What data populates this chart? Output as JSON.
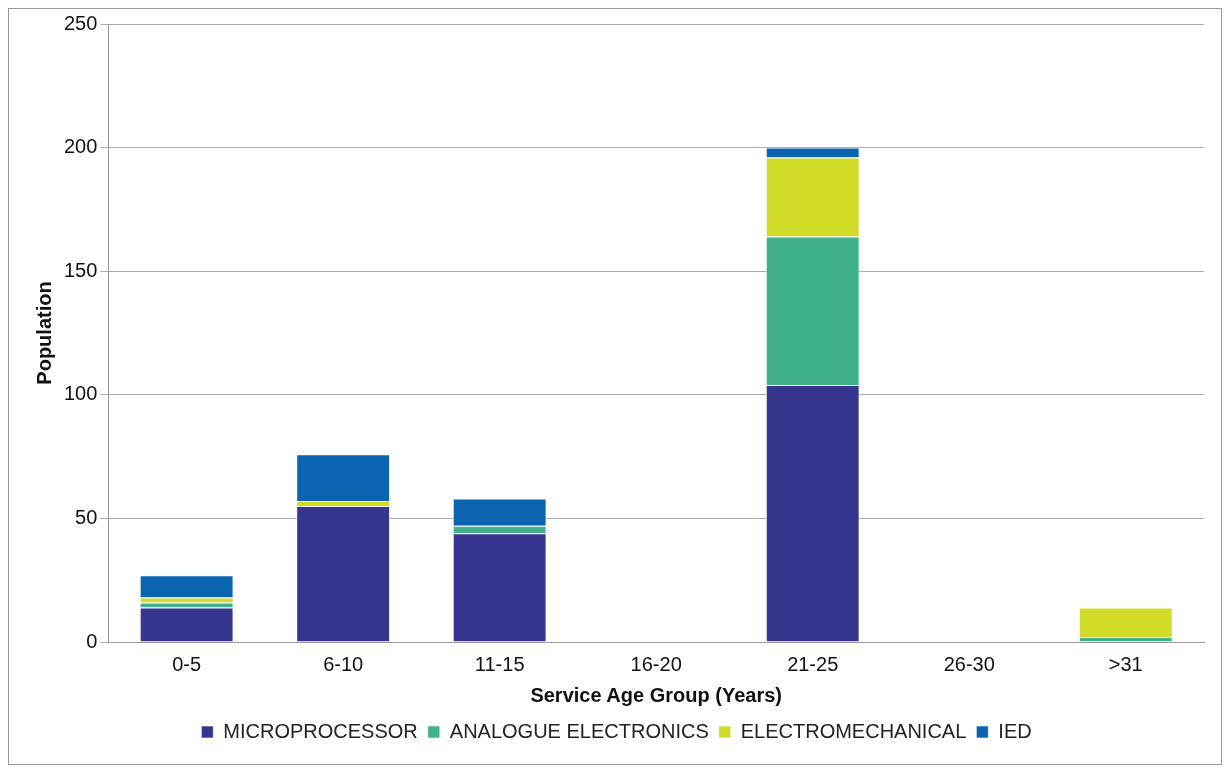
{
  "chart_data": {
    "type": "bar",
    "stacked": true,
    "xlabel": "Service Age Group (Years)",
    "ylabel": "Population",
    "categories": [
      "0-5",
      "6-10",
      "11-15",
      "16-20",
      "21-25",
      "26-30",
      ">31"
    ],
    "series": [
      {
        "name": "MICROPROCESSOR",
        "color": "#37368f",
        "values": [
          14,
          55,
          44,
          0,
          104,
          0,
          0
        ]
      },
      {
        "name": "ANALOGUE ELECTRONICS",
        "color": "#40b08d",
        "values": [
          2,
          0,
          3,
          0,
          60,
          0,
          2
        ]
      },
      {
        "name": "ELECTROMECHANICAL",
        "color": "#cfdb27",
        "values": [
          2,
          2,
          0,
          0,
          32,
          0,
          12
        ]
      },
      {
        "name": "IED",
        "color": "#0a64b0",
        "values": [
          9,
          19,
          11,
          0,
          4,
          0,
          0
        ]
      }
    ],
    "ylim": [
      0,
      250
    ],
    "yticks": [
      0,
      50,
      100,
      150,
      200,
      250
    ],
    "grid": "y",
    "legend": "bottom"
  }
}
